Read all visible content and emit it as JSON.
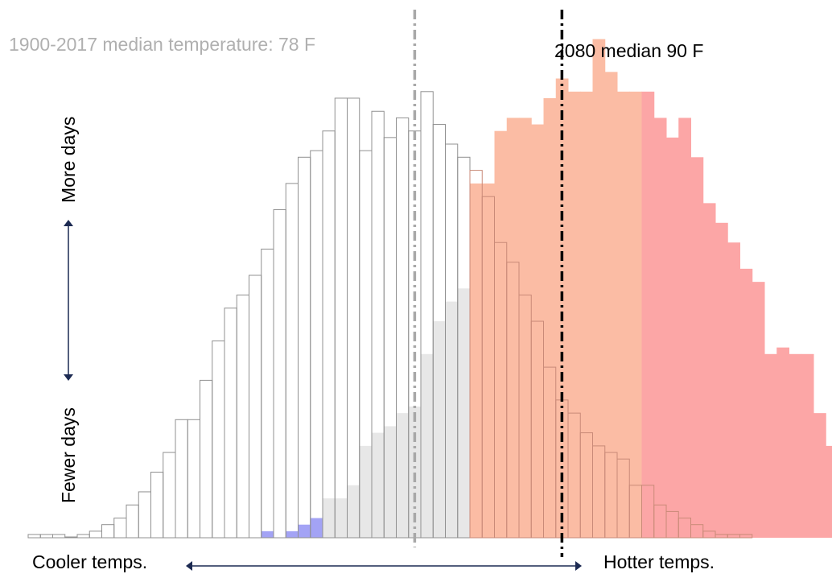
{
  "chart_data": {
    "type": "bar",
    "title": "",
    "xlabel": "",
    "ylabel": "",
    "axis_labels": {
      "cooler": "Cooler temps.",
      "hotter": "Hotter temps.",
      "more": "More days",
      "fewer": "Fewer days"
    },
    "annotations": {
      "historical_median": "1900-2017 median temperature: 78 F",
      "future_median": "2080 median 90 F"
    },
    "colors": {
      "historical_outline": "#909090",
      "historical_fill": "#e7e7e7",
      "historical_cool_fill": "#a3a3f5",
      "future_fill": "#fbbca4",
      "future_hot_fill": "#fca6a6",
      "future_outline": "#c98a78",
      "historical_median_line": "#a8a8a8",
      "future_median_line": "#000000",
      "arrow": "#1c2a52"
    },
    "bin_range": [
      0,
      64
    ],
    "historical_median_bin": 31.5,
    "future_median_bin": 43.5,
    "series": [
      {
        "role": "historical",
        "start_bin": 0,
        "values": [
          0.5,
          0.5,
          0.5,
          0.0,
          0.5,
          1,
          2,
          3,
          5,
          7,
          10,
          13,
          18,
          18,
          24,
          30,
          35,
          37,
          40,
          44,
          50,
          54,
          58,
          59,
          62,
          67,
          67,
          59,
          65,
          61,
          64,
          62,
          68,
          63,
          60,
          58,
          56,
          52,
          45,
          42,
          37,
          33,
          26,
          21,
          19,
          16,
          14,
          13,
          12,
          8,
          8,
          5,
          4,
          3,
          2,
          1,
          0.5,
          0.5,
          0.5
        ]
      },
      {
        "role": "historical-shaded",
        "start_bin": 17,
        "values": [
          0,
          0,
          1,
          0,
          1,
          2,
          3,
          6,
          6,
          8,
          14,
          16,
          17,
          19,
          20,
          28,
          33,
          36,
          38,
          43,
          46
        ]
      },
      {
        "role": "future",
        "start_bin": 36,
        "values": [
          54,
          54,
          62,
          64,
          64,
          63,
          67,
          70,
          68,
          68,
          76,
          71,
          68,
          68,
          68,
          64,
          61,
          64,
          58,
          51,
          48,
          45,
          41,
          39,
          28,
          29,
          28,
          28,
          19,
          14,
          11,
          8,
          5,
          7,
          7,
          5
        ]
      }
    ]
  }
}
